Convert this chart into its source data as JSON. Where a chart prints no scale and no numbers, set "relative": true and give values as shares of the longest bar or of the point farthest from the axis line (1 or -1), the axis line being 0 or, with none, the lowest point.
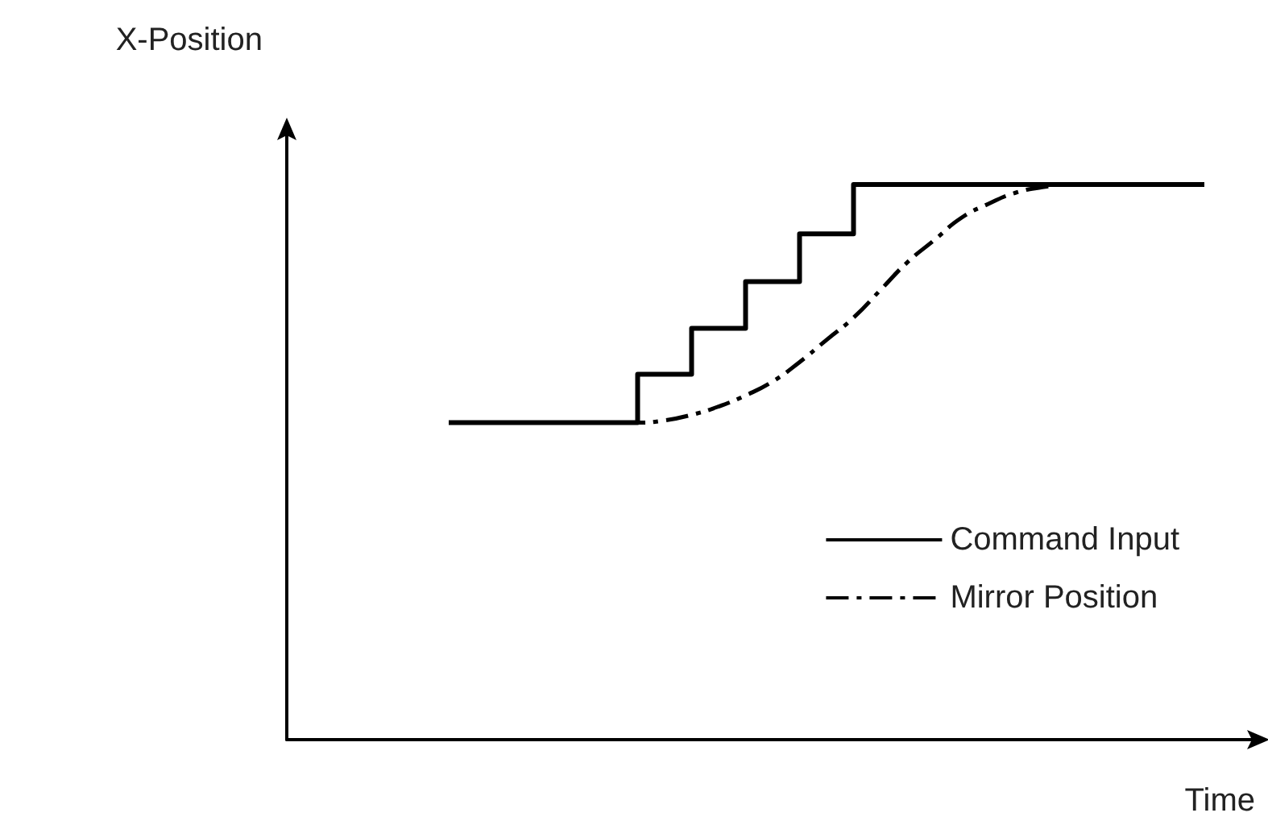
{
  "chart_data": {
    "type": "line",
    "relative": true,
    "xlabel": "Time",
    "ylabel": "X-Position",
    "categories": [
      null,
      null,
      null,
      null,
      null,
      null,
      null,
      null,
      null,
      null,
      null,
      null,
      null,
      null,
      null,
      null,
      null,
      null,
      null,
      null,
      null,
      null,
      null,
      null,
      null,
      null,
      null,
      null,
      null,
      null,
      null,
      null,
      null,
      null,
      null,
      null,
      null
    ],
    "series": [
      {
        "name": "Command Input",
        "type": "step",
        "color": "#000000",
        "line_style": "solid",
        "values": [
          null,
          null,
          null,
          null,
          null,
          null,
          0.571,
          0.571,
          0.571,
          0.571,
          0.571,
          0.571,
          0.571,
          0.658,
          0.658,
          0.741,
          0.741,
          0.825,
          0.825,
          0.911,
          0.911,
          1,
          1,
          1,
          1,
          1,
          1,
          1,
          1,
          1,
          1,
          1,
          1,
          1,
          1,
          null,
          null
        ]
      },
      {
        "name": "Mirror Position",
        "color": "#000000",
        "line_style": "dashed",
        "values": [
          null,
          null,
          null,
          null,
          null,
          null,
          0.571,
          0.571,
          0.571,
          0.571,
          0.571,
          0.571,
          0.571,
          0.571,
          0.575,
          0.585,
          0.6,
          0.62,
          0.645,
          0.68,
          0.72,
          0.76,
          0.81,
          0.86,
          0.9,
          0.94,
          0.965,
          0.985,
          0.995,
          1,
          1,
          1,
          1,
          1,
          1,
          null,
          null
        ]
      }
    ],
    "legend": "bottom right",
    "grid": false,
    "marker": "none"
  }
}
